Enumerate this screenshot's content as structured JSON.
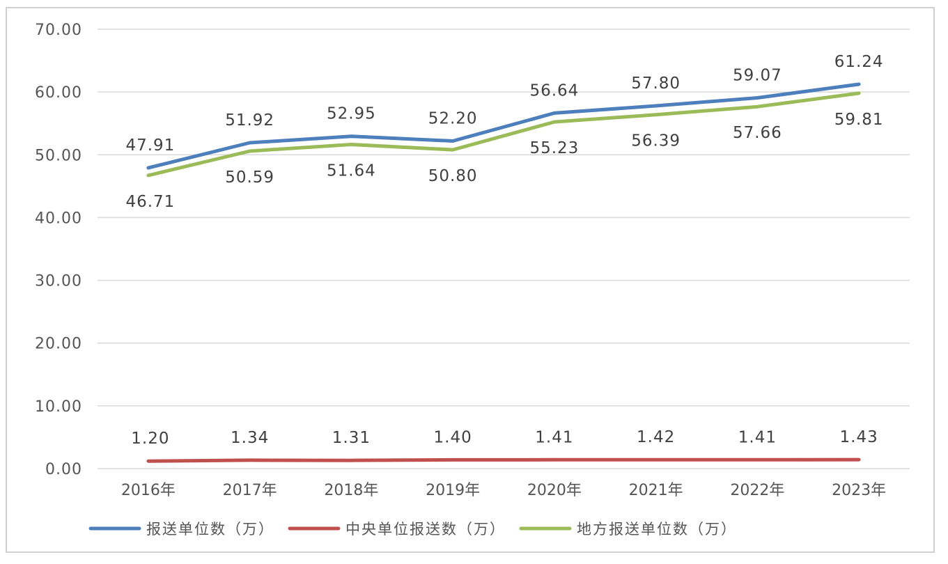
{
  "chart_data": {
    "type": "line",
    "categories": [
      "2016年",
      "2017年",
      "2018年",
      "2019年",
      "2020年",
      "2021年",
      "2022年",
      "2023年"
    ],
    "y_ticks": [
      "0.00",
      "10.00",
      "20.00",
      "30.00",
      "40.00",
      "50.00",
      "60.00",
      "70.00"
    ],
    "ylim": [
      0,
      70
    ],
    "grid": true,
    "legend_position": "bottom",
    "series": [
      {
        "name": "报送单位数（万）",
        "color": "#4e7fbd",
        "values": [
          47.91,
          51.92,
          52.95,
          52.2,
          56.64,
          57.8,
          59.07,
          61.24
        ],
        "labels": [
          "47.91",
          "51.92",
          "52.95",
          "52.20",
          "56.64",
          "57.80",
          "59.07",
          "61.24"
        ],
        "label_position": "above"
      },
      {
        "name": "中央单位报送数（万）",
        "color": "#c0504d",
        "values": [
          1.2,
          1.34,
          1.31,
          1.4,
          1.41,
          1.42,
          1.41,
          1.43
        ],
        "labels": [
          "1.20",
          "1.34",
          "1.31",
          "1.40",
          "1.41",
          "1.42",
          "1.41",
          "1.43"
        ],
        "label_position": "above"
      },
      {
        "name": "地方报送单位数（万）",
        "color": "#9bbb59",
        "values": [
          46.71,
          50.59,
          51.64,
          50.8,
          55.23,
          56.39,
          57.66,
          59.81
        ],
        "labels": [
          "46.71",
          "50.59",
          "51.64",
          "50.80",
          "55.23",
          "56.39",
          "57.66",
          "59.81"
        ],
        "label_position": "below"
      }
    ]
  }
}
